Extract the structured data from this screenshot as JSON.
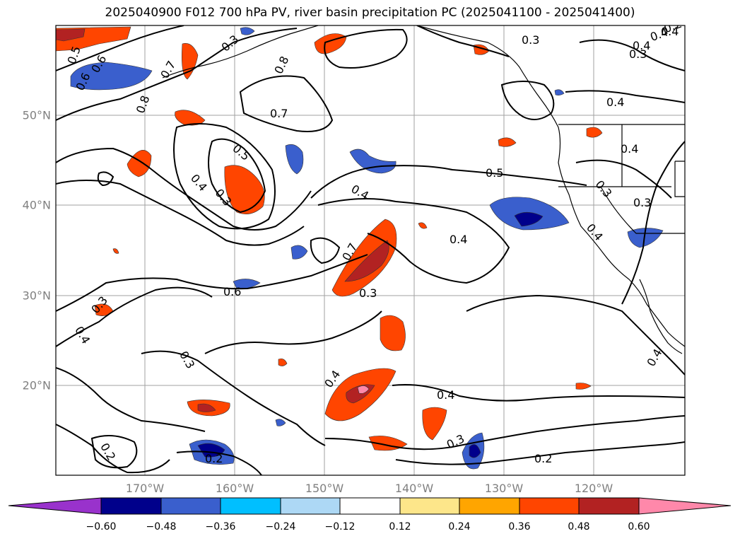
{
  "title": "2025040900 F012 700 hPa PV, river basin precipitation PC (2025041100 - 2025041400)",
  "lat_labels": [
    "50°N",
    "40°N",
    "30°N",
    "20°N"
  ],
  "lon_labels": [
    "170°W",
    "160°W",
    "150°W",
    "140°W",
    "130°W",
    "120°W"
  ],
  "colorbar": {
    "ticks": [
      "−0.60",
      "−0.48",
      "−0.36",
      "−0.24",
      "−0.12",
      "0.12",
      "0.24",
      "0.36",
      "0.48",
      "0.60"
    ],
    "colors": {
      "below": "#9932cc",
      "neg_060": "#00008b",
      "neg_048": "#3a5fcd",
      "neg_036": "#00bfff",
      "neg_024": "#add8f5",
      "neutral": "#ffffff",
      "pos_012": "#fde68a",
      "pos_024": "#ffa500",
      "pos_036": "#ff4500",
      "pos_048": "#b22222",
      "above": "#ff88aa"
    }
  },
  "contour_labels": [
    "0.5",
    "0.6",
    "0.7",
    "0.8",
    "0.7",
    "0.5",
    "0.4",
    "0.3",
    "0.4",
    "0.5",
    "0.4",
    "0.4",
    "0.3",
    "0.4",
    "0.3",
    "0.6",
    "0.7",
    "0.3",
    "0.4",
    "0.3",
    "0.4",
    "0.4",
    "0.3",
    "0.2",
    "0.2",
    "0.3",
    "0.4",
    "0.3",
    "0.4",
    "0.4",
    "0.4",
    "0.3",
    "0.2",
    "0.4",
    "0.3",
    "0.2",
    "0.8",
    "0.6"
  ]
}
